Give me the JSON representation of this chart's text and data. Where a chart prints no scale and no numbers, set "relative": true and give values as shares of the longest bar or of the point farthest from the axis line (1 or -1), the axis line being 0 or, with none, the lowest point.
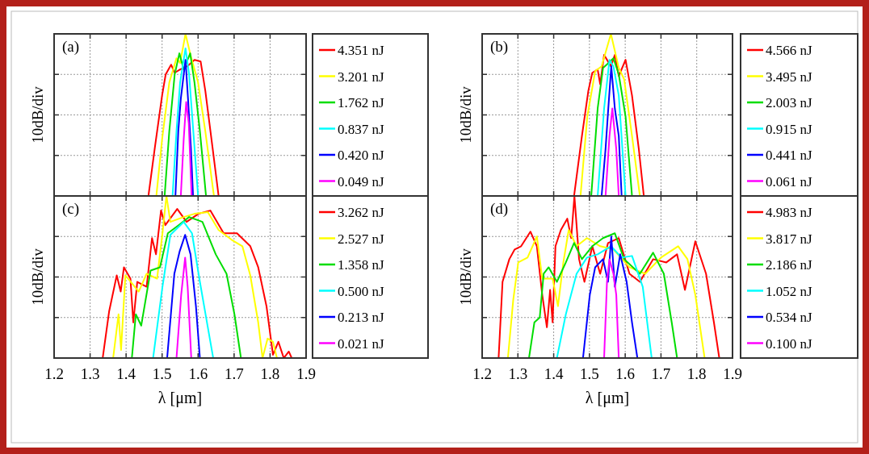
{
  "chart_data": [
    {
      "type": "line",
      "relative": true,
      "ylabel": "10dB/div",
      "annotations": [
        "(a)"
      ],
      "xlim": [
        1.2,
        1.9
      ],
      "xticks": [
        1.2,
        1.3,
        1.4,
        1.5,
        1.6,
        1.7,
        1.8,
        1.9
      ],
      "tick_labels": false,
      "grid": true,
      "legend": "right",
      "line_style": "solid",
      "series": [
        {
          "name": "4.351 nJ",
          "color": "#ff0000",
          "x": [
            1.462,
            1.48,
            1.5,
            1.51,
            1.525,
            1.535,
            1.55,
            1.57,
            1.59,
            1.607,
            1.62,
            1.64,
            1.657
          ],
          "values": [
            0,
            0.3,
            0.62,
            0.75,
            0.81,
            0.76,
            0.78,
            0.8,
            0.84,
            0.83,
            0.65,
            0.3,
            0
          ]
        },
        {
          "name": "3.201 nJ",
          "color": "#ffff00",
          "x": [
            1.484,
            1.5,
            1.52,
            1.54,
            1.55,
            1.565,
            1.58,
            1.6,
            1.62,
            1.644
          ],
          "values": [
            0,
            0.35,
            0.7,
            0.85,
            0.82,
            1,
            0.86,
            0.7,
            0.4,
            0
          ]
        },
        {
          "name": "1.762 nJ",
          "color": "#00dd00",
          "x": [
            1.507,
            1.52,
            1.535,
            1.548,
            1.56,
            1.578,
            1.59,
            1.605,
            1.622
          ],
          "values": [
            0,
            0.4,
            0.75,
            0.88,
            0.78,
            0.88,
            0.7,
            0.4,
            0
          ]
        },
        {
          "name": "0.837 nJ",
          "color": "#00ffff",
          "x": [
            1.529,
            1.54,
            1.55,
            1.565,
            1.575,
            1.585,
            1.6
          ],
          "values": [
            0,
            0.4,
            0.7,
            0.91,
            0.75,
            0.45,
            0
          ]
        },
        {
          "name": "0.420 nJ",
          "color": "#0000ff",
          "x": [
            1.537,
            1.545,
            1.552,
            1.565,
            1.572,
            1.58,
            1.586
          ],
          "values": [
            0,
            0.4,
            0.6,
            0.84,
            0.6,
            0.3,
            0
          ]
        },
        {
          "name": "0.049 nJ",
          "color": "#ff00ff",
          "x": [
            1.552,
            1.56,
            1.567,
            1.574,
            1.582
          ],
          "values": [
            0,
            0.35,
            0.58,
            0.45,
            0
          ]
        }
      ]
    },
    {
      "type": "line",
      "relative": true,
      "ylabel": "10dB/div",
      "annotations": [
        "(b)"
      ],
      "xlim": [
        1.2,
        1.9
      ],
      "xticks": [
        1.2,
        1.3,
        1.4,
        1.5,
        1.6,
        1.7,
        1.8,
        1.9
      ],
      "tick_labels": false,
      "grid": true,
      "legend": "right",
      "line_style": "solid",
      "series": [
        {
          "name": "4.566 nJ",
          "color": "#ff0000",
          "x": [
            1.457,
            1.479,
            1.497,
            1.508,
            1.523,
            1.53,
            1.541,
            1.56,
            1.571,
            1.582,
            1.601,
            1.619,
            1.638,
            1.652
          ],
          "values": [
            0,
            0.37,
            0.65,
            0.76,
            0.78,
            0.69,
            0.87,
            0.8,
            0.87,
            0.74,
            0.84,
            0.62,
            0.29,
            0
          ]
        },
        {
          "name": "3.495 nJ",
          "color": "#ffff00",
          "x": [
            1.475,
            1.494,
            1.516,
            1.534,
            1.56,
            1.582,
            1.597,
            1.619,
            1.641
          ],
          "values": [
            0,
            0.49,
            0.77,
            0.8,
            1,
            0.79,
            0.72,
            0.37,
            0
          ]
        },
        {
          "name": "2.003 nJ",
          "color": "#00dd00",
          "x": [
            1.505,
            1.523,
            1.538,
            1.553,
            1.567,
            1.582,
            1.601,
            1.619
          ],
          "values": [
            0,
            0.54,
            0.79,
            0.82,
            0.85,
            0.75,
            0.49,
            0
          ]
        },
        {
          "name": "0.915 nJ",
          "color": "#00ffff",
          "x": [
            1.523,
            1.541,
            1.556,
            1.567,
            1.582,
            1.601
          ],
          "values": [
            0,
            0.54,
            0.84,
            0.8,
            0.62,
            0
          ]
        },
        {
          "name": "0.441 nJ",
          "color": "#0000ff",
          "x": [
            1.534,
            1.545,
            1.553,
            1.561,
            1.571,
            1.582,
            1.59
          ],
          "values": [
            0,
            0.29,
            0.55,
            0.8,
            0.54,
            0.37,
            0
          ]
        },
        {
          "name": "0.061 nJ",
          "color": "#ff00ff",
          "x": [
            1.545,
            1.556,
            1.564,
            1.575,
            1.582
          ],
          "values": [
            0,
            0.37,
            0.54,
            0.29,
            0
          ]
        }
      ]
    },
    {
      "type": "line",
      "relative": true,
      "ylabel": "10dB/div",
      "xlabel": "λ [μm]",
      "annotations": [
        "(c)"
      ],
      "xlim": [
        1.2,
        1.9
      ],
      "xticks": [
        1.2,
        1.3,
        1.4,
        1.5,
        1.6,
        1.7,
        1.8,
        1.9
      ],
      "tick_labels": "x",
      "grid": true,
      "legend": "right",
      "line_style": "solid",
      "series": [
        {
          "name": "3.262 nJ",
          "color": "#ff0000",
          "x": [
            1.335,
            1.353,
            1.374,
            1.385,
            1.394,
            1.412,
            1.42,
            1.431,
            1.457,
            1.472,
            1.483,
            1.497,
            1.509,
            1.542,
            1.568,
            1.601,
            1.634,
            1.671,
            1.708,
            1.745,
            1.767,
            1.79,
            1.808,
            1.823,
            1.838,
            1.852,
            1.86
          ],
          "values": [
            0,
            0.29,
            0.51,
            0.41,
            0.56,
            0.49,
            0.22,
            0.47,
            0.44,
            0.74,
            0.64,
            0.91,
            0.82,
            0.92,
            0.84,
            0.89,
            0.91,
            0.77,
            0.77,
            0.69,
            0.56,
            0.32,
            0.02,
            0.1,
            0,
            0.04,
            0
          ]
        },
        {
          "name": "2.527 nJ",
          "color": "#ffff00",
          "x": [
            1.364,
            1.379,
            1.386,
            1.398,
            1.435,
            1.457,
            1.486,
            1.501,
            1.512,
            1.523,
            1.56,
            1.59,
            1.627,
            1.657,
            1.693,
            1.723,
            1.745,
            1.767,
            1.779,
            1.793,
            1.808,
            1.819
          ],
          "values": [
            0,
            0.27,
            0.05,
            0.51,
            0.41,
            0.52,
            0.49,
            0.77,
            1,
            0.84,
            0.87,
            0.89,
            0.9,
            0.79,
            0.73,
            0.69,
            0.51,
            0.22,
            0,
            0.12,
            0.1,
            0
          ]
        },
        {
          "name": "1.358 nJ",
          "color": "#00dd00",
          "x": [
            1.416,
            1.427,
            1.442,
            1.468,
            1.494,
            1.516,
            1.546,
            1.575,
            1.612,
            1.649,
            1.679,
            1.701,
            1.719
          ],
          "values": [
            0,
            0.27,
            0.2,
            0.54,
            0.56,
            0.77,
            0.82,
            0.87,
            0.84,
            0.64,
            0.52,
            0.27,
            0
          ]
        },
        {
          "name": "0.500 nJ",
          "color": "#00ffff",
          "x": [
            1.475,
            1.501,
            1.523,
            1.56,
            1.583,
            1.605,
            1.627,
            1.642
          ],
          "values": [
            0,
            0.44,
            0.76,
            0.84,
            0.77,
            0.47,
            0.19,
            0
          ]
        },
        {
          "name": "0.213 nJ",
          "color": "#0000ff",
          "x": [
            1.514,
            1.534,
            1.549,
            1.564,
            1.579,
            1.594,
            1.605
          ],
          "values": [
            0,
            0.52,
            0.66,
            0.76,
            0.64,
            0.32,
            0
          ]
        },
        {
          "name": "0.021 nJ",
          "color": "#ff00ff",
          "x": [
            1.54,
            1.553,
            1.564,
            1.571,
            1.581
          ],
          "values": [
            0,
            0.39,
            0.62,
            0.44,
            0
          ]
        }
      ]
    },
    {
      "type": "line",
      "relative": true,
      "ylabel": "10dB/div",
      "xlabel": "λ [μm]",
      "annotations": [
        "(d)"
      ],
      "xlim": [
        1.2,
        1.9
      ],
      "xticks": [
        1.2,
        1.3,
        1.4,
        1.5,
        1.6,
        1.7,
        1.8,
        1.9
      ],
      "tick_labels": "x",
      "grid": true,
      "legend": "right",
      "line_style": "solid",
      "series": [
        {
          "name": "4.983 nJ",
          "color": "#ff0000",
          "x": [
            1.246,
            1.257,
            1.276,
            1.291,
            1.309,
            1.335,
            1.353,
            1.368,
            1.381,
            1.39,
            1.397,
            1.405,
            1.42,
            1.438,
            1.449,
            1.458,
            1.471,
            1.486,
            1.508,
            1.53,
            1.552,
            1.582,
            1.612,
            1.641,
            1.678,
            1.715,
            1.745,
            1.767,
            1.796,
            1.826,
            1.848,
            1.863
          ],
          "values": [
            0,
            0.47,
            0.61,
            0.67,
            0.69,
            0.78,
            0.69,
            0.39,
            0.19,
            0.42,
            0.22,
            0.69,
            0.79,
            0.86,
            0.74,
            1,
            0.61,
            0.47,
            0.69,
            0.52,
            0.71,
            0.74,
            0.52,
            0.47,
            0.61,
            0.59,
            0.64,
            0.42,
            0.72,
            0.52,
            0.22,
            0
          ]
        },
        {
          "name": "3.817 nJ",
          "color": "#ffff00",
          "x": [
            1.272,
            1.287,
            1.301,
            1.327,
            1.353,
            1.368,
            1.397,
            1.412,
            1.427,
            1.442,
            1.464,
            1.493,
            1.53,
            1.567,
            1.612,
            1.656,
            1.7,
            1.748,
            1.774,
            1.796,
            1.822
          ],
          "values": [
            0,
            0.36,
            0.59,
            0.62,
            0.75,
            0.49,
            0.49,
            0.32,
            0.59,
            0.79,
            0.69,
            0.74,
            0.69,
            0.67,
            0.56,
            0.52,
            0.62,
            0.69,
            0.61,
            0.39,
            0
          ]
        },
        {
          "name": "2.186 nJ",
          "color": "#00dd00",
          "x": [
            1.331,
            1.346,
            1.361,
            1.372,
            1.386,
            1.409,
            1.434,
            1.457,
            1.479,
            1.508,
            1.538,
            1.571,
            1.597,
            1.641,
            1.678,
            1.708,
            1.73,
            1.745
          ],
          "values": [
            0,
            0.22,
            0.25,
            0.52,
            0.56,
            0.47,
            0.59,
            0.71,
            0.61,
            0.69,
            0.74,
            0.77,
            0.61,
            0.52,
            0.65,
            0.52,
            0.22,
            0
          ]
        },
        {
          "name": "1.052 nJ",
          "color": "#00ffff",
          "x": [
            1.409,
            1.434,
            1.464,
            1.493,
            1.523,
            1.56,
            1.59,
            1.619,
            1.649,
            1.674
          ],
          "values": [
            0,
            0.27,
            0.52,
            0.62,
            0.64,
            0.69,
            0.62,
            0.63,
            0.44,
            0
          ]
        },
        {
          "name": "0.534 nJ",
          "color": "#0000ff",
          "x": [
            1.482,
            1.501,
            1.516,
            1.538,
            1.552,
            1.561,
            1.571,
            1.586,
            1.604,
            1.619,
            1.634
          ],
          "values": [
            0,
            0.39,
            0.56,
            0.61,
            0.47,
            0.75,
            0.44,
            0.64,
            0.47,
            0.22,
            0
          ]
        },
        {
          "name": "0.100 nJ",
          "color": "#ff00ff",
          "x": [
            1.541,
            1.549,
            1.556,
            1.567,
            1.575,
            1.582
          ],
          "values": [
            0,
            0.47,
            0.61,
            0.52,
            0.39,
            0
          ]
        }
      ]
    }
  ]
}
